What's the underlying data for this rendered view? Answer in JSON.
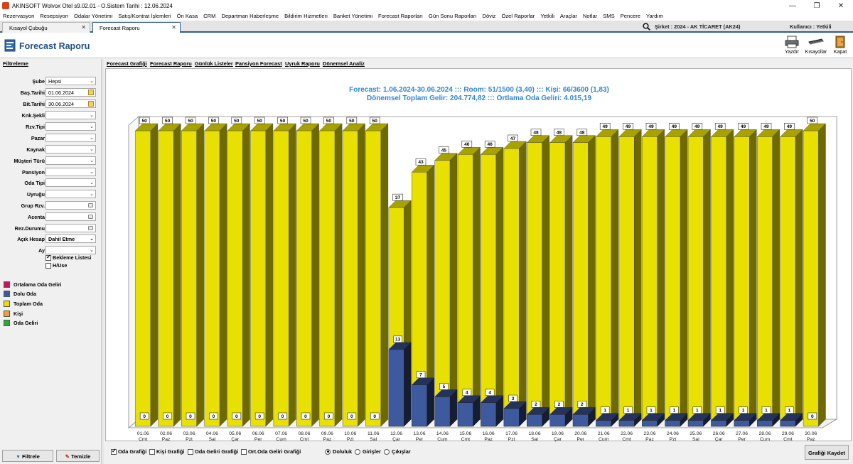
{
  "window": {
    "title": "AKINSOFT Wolvox Otel s9.02.01 - O.Sistem Tarihi : 12.06.2024",
    "controls": [
      "—",
      "❐",
      "✕"
    ]
  },
  "menu": [
    "Rezervasyon",
    "Resepsiyon",
    "Odalar Yönetimi",
    "Satış/Kontrat İşlemleri",
    "Ön Kasa",
    "CRM",
    "Departman Haberleşme",
    "Bildirim Hizmetleri",
    "Banket Yönetimi",
    "Forecast Raporları",
    "Gün Sonu Raporları",
    "Döviz",
    "Özel Raporlar",
    "Yetkili",
    "Araçlar",
    "Notlar",
    "SMS",
    "Pencere",
    "Yardım"
  ],
  "doc_tabs": [
    {
      "label": "Kısayol Çubuğu"
    },
    {
      "label": "Forecast Raporu"
    }
  ],
  "company": "Şirket : 2024 - AK TİCARET (AK24)",
  "user": "Kullanıcı : Yetkili",
  "page_title": "Forecast Raporu",
  "toolbar": {
    "print": "Yazdır",
    "shortcuts": "Kısayollar",
    "close": "Kapat"
  },
  "filters": {
    "title": "Filtreleme",
    "rows": [
      {
        "label": "Şube",
        "value": "Hepsi",
        "kind": "combo",
        "bold": false
      },
      {
        "label": "Baş.Tarihi",
        "value": "01.06.2024",
        "kind": "date",
        "bold": false
      },
      {
        "label": "Bit.Tarihi",
        "value": "30.06.2024",
        "kind": "date",
        "bold": false
      },
      {
        "label": "Knk.Şekli",
        "value": "",
        "kind": "combo",
        "bold": false
      },
      {
        "label": "Rzv.Tipi",
        "value": "",
        "kind": "combo",
        "bold": false
      },
      {
        "label": "Pazar",
        "value": "",
        "kind": "combo",
        "bold": false
      },
      {
        "label": "Kaynak",
        "value": "",
        "kind": "combo",
        "bold": false
      },
      {
        "label": "Müşteri Türü",
        "value": "",
        "kind": "combo",
        "bold": false
      },
      {
        "label": "Pansiyon",
        "value": "",
        "kind": "combo",
        "bold": false
      },
      {
        "label": "Oda Tipi",
        "value": "",
        "kind": "combo",
        "bold": false
      },
      {
        "label": "Uyruğu",
        "value": "",
        "kind": "combo",
        "bold": false
      },
      {
        "label": "Grup Rzv.",
        "value": "",
        "kind": "ellipsis",
        "bold": false
      },
      {
        "label": "Acenta",
        "value": "",
        "kind": "ellipsis",
        "bold": false
      },
      {
        "label": "Rez.Durumu",
        "value": "",
        "kind": "ellipsis",
        "bold": false
      },
      {
        "label": "Açık Hesap",
        "value": "Dahil Etme",
        "kind": "combo",
        "bold": true
      },
      {
        "label": "Ay",
        "value": "",
        "kind": "combo",
        "bold": false
      }
    ],
    "checks": [
      {
        "label": "Bekleme Listesi",
        "checked": true
      },
      {
        "label": "H/Use",
        "checked": false
      }
    ],
    "filter_button": "Filtrele",
    "clear_button": "Temizle"
  },
  "legend": [
    {
      "label": "Ortalama Oda Geliri",
      "color": "#c2185b"
    },
    {
      "label": "Dolu Oda",
      "color": "#3d5a9e"
    },
    {
      "label": "Toplam Oda",
      "color": "#e8e000"
    },
    {
      "label": "Kişi",
      "color": "#f0a030"
    },
    {
      "label": "Oda Geliri",
      "color": "#2eaa3a"
    }
  ],
  "sub_tabs": [
    "Forecast Grafiği",
    "Forecast Raporu",
    "Günlük Listeler",
    "Pansiyon Forecast",
    "Uyruk Raporu",
    "Dönemsel Analiz"
  ],
  "chart_data": {
    "type": "bar",
    "title": "Forecast: 1.06.2024-30.06.2024  :::  Room: 51/1500 (3,40)  :::  Kişi: 66/3600 (1,83)",
    "subtitle": "Dönemsel Toplam Gelir: 204.774,82  :::  Ortlama Oda Geliri: 4.015,19",
    "categories": [
      "01.06",
      "02.06",
      "03.06",
      "04.06",
      "05.06",
      "06.06",
      "07.06",
      "08.06",
      "09.06",
      "10.06",
      "11.06",
      "12.06",
      "13.06",
      "14.06",
      "15.06",
      "16.06",
      "17.06",
      "18.06",
      "19.06",
      "20.06",
      "21.06",
      "22.06",
      "23.06",
      "24.06",
      "25.06",
      "26.06",
      "27.06",
      "28.06",
      "29.06",
      "30.06"
    ],
    "day_names": [
      "Cmt",
      "Paz",
      "Pzt",
      "Sal",
      "Çar",
      "Per",
      "Cum",
      "Cmt",
      "Paz",
      "Pzt",
      "Sal",
      "Çar",
      "Per",
      "Cum",
      "Cmt",
      "Paz",
      "Pzt",
      "Sal",
      "Çar",
      "Per",
      "Cum",
      "Cmt",
      "Paz",
      "Pzt",
      "Sal",
      "Çar",
      "Per",
      "Cum",
      "Cmt",
      "Paz"
    ],
    "series": [
      {
        "name": "Toplam Oda",
        "color": "#e8e000",
        "values": [
          50,
          50,
          50,
          50,
          50,
          50,
          50,
          50,
          50,
          50,
          50,
          37,
          43,
          45,
          46,
          46,
          47,
          48,
          48,
          48,
          49,
          49,
          49,
          49,
          49,
          49,
          49,
          49,
          49,
          50
        ]
      },
      {
        "name": "Dolu Oda",
        "color": "#3d5a9e",
        "values": [
          0,
          0,
          0,
          0,
          0,
          0,
          0,
          0,
          0,
          0,
          0,
          13,
          7,
          5,
          4,
          4,
          3,
          2,
          2,
          2,
          1,
          1,
          1,
          1,
          1,
          1,
          1,
          1,
          1,
          0
        ]
      }
    ],
    "ylim": [
      0,
      50
    ],
    "stacked": true,
    "three_d": true
  },
  "bottom": {
    "options": [
      {
        "label": "Oda Grafiği",
        "checked": true
      },
      {
        "label": "Kişi Grafiği",
        "checked": false
      },
      {
        "label": "Oda Geliri Grafiği",
        "checked": false
      },
      {
        "label": "Ort.Oda Geliri Grafiği",
        "checked": false
      }
    ],
    "radios": [
      {
        "label": "Doluluk",
        "selected": true
      },
      {
        "label": "Girişler",
        "selected": false
      },
      {
        "label": "Çıkışlar",
        "selected": false
      }
    ],
    "save_button": "Grafiği Kaydet"
  }
}
